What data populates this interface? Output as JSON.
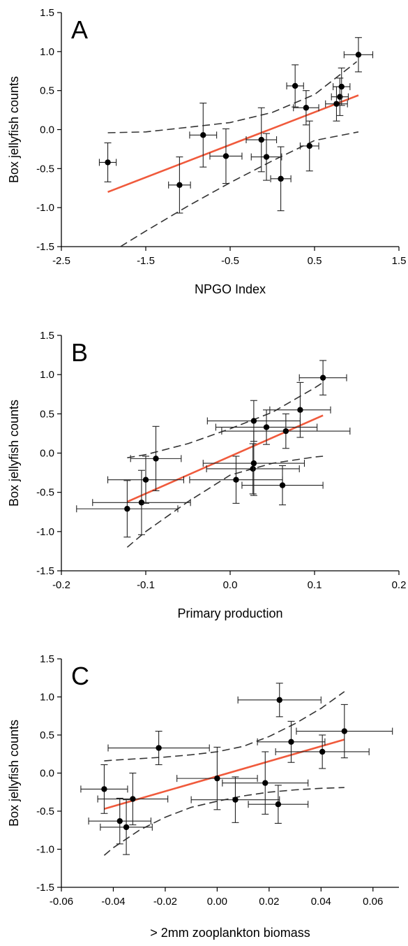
{
  "chart_data": [
    {
      "type": "scatter",
      "panel_label": "A",
      "xlabel": "NPGO Index",
      "ylabel": "Box jellyfish counts",
      "xlim": [
        -2.5,
        1.5
      ],
      "ylim": [
        -1.5,
        1.5
      ],
      "xticks": [
        "-2.5",
        "-1.5",
        "-0.5",
        "0.5",
        "1.5"
      ],
      "yticks": [
        "1.5",
        "1.0",
        "0.5",
        "0.0",
        "-0.5",
        "-1.0",
        "-1.5"
      ],
      "points": [
        {
          "x": -1.95,
          "y": -0.42,
          "xerr": 0.1,
          "yerr": 0.25
        },
        {
          "x": -1.1,
          "y": -0.71,
          "xerr": 0.13,
          "yerr": 0.36
        },
        {
          "x": -0.82,
          "y": -0.07,
          "xerr": 0.16,
          "yerr": 0.41
        },
        {
          "x": -0.55,
          "y": -0.34,
          "xerr": 0.19,
          "yerr": 0.35
        },
        {
          "x": -0.13,
          "y": -0.13,
          "xerr": 0.18,
          "yerr": 0.41
        },
        {
          "x": -0.07,
          "y": -0.35,
          "xerr": 0.18,
          "yerr": 0.3
        },
        {
          "x": 0.1,
          "y": -0.63,
          "xerr": 0.12,
          "yerr": 0.41
        },
        {
          "x": 0.27,
          "y": 0.56,
          "xerr": 0.1,
          "yerr": 0.27
        },
        {
          "x": 0.4,
          "y": 0.28,
          "xerr": 0.15,
          "yerr": 0.22
        },
        {
          "x": 0.44,
          "y": -0.21,
          "xerr": 0.11,
          "yerr": 0.32
        },
        {
          "x": 0.76,
          "y": 0.33,
          "xerr": 0.13,
          "yerr": 0.22
        },
        {
          "x": 0.8,
          "y": 0.42,
          "xerr": 0.1,
          "yerr": 0.24
        },
        {
          "x": 0.82,
          "y": 0.55,
          "xerr": 0.1,
          "yerr": 0.24
        },
        {
          "x": 1.02,
          "y": 0.96,
          "xerr": 0.17,
          "yerr": 0.22
        }
      ],
      "fit_line": {
        "x": [
          -1.95,
          1.02
        ],
        "y": [
          -0.8,
          0.44
        ],
        "color": "#f05a3c"
      },
      "ci_upper": {
        "x": [
          -1.95,
          -1.5,
          -1.0,
          -0.5,
          0.0,
          0.5,
          1.0
        ],
        "y": [
          -0.04,
          -0.03,
          0.03,
          0.09,
          0.22,
          0.45,
          0.87
        ]
      },
      "ci_lower": {
        "x": [
          -1.8,
          -1.5,
          -1.0,
          -0.5,
          0.0,
          0.5,
          1.02
        ],
        "y": [
          -1.5,
          -1.3,
          -0.98,
          -0.68,
          -0.4,
          -0.14,
          -0.03
        ]
      }
    },
    {
      "type": "scatter",
      "panel_label": "B",
      "xlabel": "Primary production",
      "ylabel": "Box jellyfish counts",
      "xlim": [
        -0.2,
        0.2
      ],
      "ylim": [
        -1.5,
        1.5
      ],
      "xticks": [
        "-0.2",
        "-0.1",
        "0.0",
        "0.1",
        "0.2"
      ],
      "yticks": [
        "1.5",
        "1.0",
        "0.5",
        "0.0",
        "-0.5",
        "-1.0",
        "-1.5"
      ],
      "points": [
        {
          "x": -0.122,
          "y": -0.71,
          "xerr": 0.06,
          "yerr": 0.36
        },
        {
          "x": -0.105,
          "y": -0.63,
          "xerr": 0.058,
          "yerr": 0.41
        },
        {
          "x": -0.1,
          "y": -0.34,
          "xerr": 0.045,
          "yerr": 0.3
        },
        {
          "x": -0.088,
          "y": -0.07,
          "xerr": 0.03,
          "yerr": 0.41
        },
        {
          "x": 0.007,
          "y": -0.34,
          "xerr": 0.055,
          "yerr": 0.3
        },
        {
          "x": 0.027,
          "y": -0.2,
          "xerr": 0.055,
          "yerr": 0.32
        },
        {
          "x": 0.028,
          "y": -0.13,
          "xerr": 0.06,
          "yerr": 0.41
        },
        {
          "x": 0.028,
          "y": 0.41,
          "xerr": 0.055,
          "yerr": 0.26
        },
        {
          "x": 0.043,
          "y": 0.33,
          "xerr": 0.06,
          "yerr": 0.22
        },
        {
          "x": 0.062,
          "y": -0.41,
          "xerr": 0.048,
          "yerr": 0.25
        },
        {
          "x": 0.066,
          "y": 0.28,
          "xerr": 0.076,
          "yerr": 0.22
        },
        {
          "x": 0.083,
          "y": 0.55,
          "xerr": 0.036,
          "yerr": 0.35
        },
        {
          "x": 0.11,
          "y": 0.96,
          "xerr": 0.028,
          "yerr": 0.22
        }
      ],
      "fit_line": {
        "x": [
          -0.122,
          0.11
        ],
        "y": [
          -0.62,
          0.48
        ],
        "color": "#f05a3c"
      },
      "ci_upper": {
        "x": [
          -0.122,
          -0.1,
          -0.05,
          0.0,
          0.05,
          0.1,
          0.11
        ],
        "y": [
          -0.06,
          -0.02,
          0.12,
          0.31,
          0.52,
          0.83,
          0.9
        ]
      },
      "ci_lower": {
        "x": [
          -0.122,
          -0.1,
          -0.05,
          0.0,
          0.05,
          0.1,
          0.11
        ],
        "y": [
          -1.2,
          -1.0,
          -0.62,
          -0.28,
          -0.13,
          -0.05,
          -0.04
        ]
      }
    },
    {
      "type": "scatter",
      "panel_label": "C",
      "xlabel": "> 2mm zooplankton biomass",
      "ylabel": "Box jellyfish counts",
      "xlim": [
        -0.06,
        0.07
      ],
      "ylim": [
        -1.5,
        1.5
      ],
      "xticks": [
        "-0.06",
        "-0.04",
        "-0.02",
        "0.00",
        "0.02",
        "0.04",
        "0.06"
      ],
      "yticks": [
        "1.5",
        "1.0",
        "0.5",
        "0.0",
        "-0.5",
        "-1.0",
        "-1.5"
      ],
      "points": [
        {
          "x": -0.0435,
          "y": -0.21,
          "xerr": 0.009,
          "yerr": 0.32
        },
        {
          "x": -0.0375,
          "y": -0.63,
          "xerr": 0.012,
          "yerr": 0.3
        },
        {
          "x": -0.035,
          "y": -0.71,
          "xerr": 0.01,
          "yerr": 0.36
        },
        {
          "x": -0.0325,
          "y": -0.34,
          "xerr": 0.0135,
          "yerr": 0.34
        },
        {
          "x": -0.0225,
          "y": 0.33,
          "xerr": 0.0195,
          "yerr": 0.22
        },
        {
          "x": 0.0,
          "y": -0.07,
          "xerr": 0.0155,
          "yerr": 0.41
        },
        {
          "x": 0.007,
          "y": -0.35,
          "xerr": 0.017,
          "yerr": 0.3
        },
        {
          "x": 0.0185,
          "y": -0.13,
          "xerr": 0.0165,
          "yerr": 0.41
        },
        {
          "x": 0.0235,
          "y": -0.41,
          "xerr": 0.0115,
          "yerr": 0.25
        },
        {
          "x": 0.024,
          "y": 0.96,
          "xerr": 0.016,
          "yerr": 0.22
        },
        {
          "x": 0.0285,
          "y": 0.41,
          "xerr": 0.013,
          "yerr": 0.27
        },
        {
          "x": 0.0405,
          "y": 0.28,
          "xerr": 0.018,
          "yerr": 0.22
        },
        {
          "x": 0.049,
          "y": 0.55,
          "xerr": 0.0185,
          "yerr": 0.35
        }
      ],
      "fit_line": {
        "x": [
          -0.0435,
          0.049
        ],
        "y": [
          -0.47,
          0.44
        ],
        "color": "#f05a3c"
      },
      "ci_upper": {
        "x": [
          -0.0435,
          -0.04,
          -0.03,
          -0.02,
          -0.01,
          0.0,
          0.01,
          0.02,
          0.03,
          0.04,
          0.049
        ],
        "y": [
          0.16,
          0.17,
          0.19,
          0.21,
          0.24,
          0.28,
          0.35,
          0.48,
          0.65,
          0.85,
          1.07
        ]
      },
      "ci_lower": {
        "x": [
          -0.0435,
          -0.04,
          -0.03,
          -0.02,
          -0.01,
          0.0,
          0.01,
          0.02,
          0.03,
          0.04,
          0.049
        ],
        "y": [
          -1.08,
          -0.98,
          -0.75,
          -0.58,
          -0.45,
          -0.37,
          -0.3,
          -0.25,
          -0.22,
          -0.2,
          -0.19
        ]
      }
    }
  ]
}
